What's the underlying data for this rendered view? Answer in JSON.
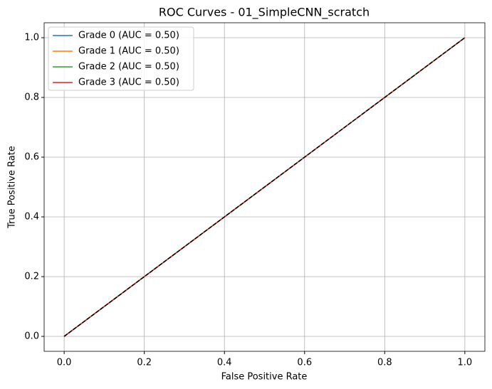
{
  "chart_data": {
    "type": "line",
    "title": "ROC Curves - 01_SimpleCNN_scratch",
    "x_label": "False Positive Rate",
    "y_label": "True Positive Rate",
    "x": [
      0,
      1
    ],
    "series": [
      {
        "name": "Grade 0 (AUC = 0.50)",
        "color": "#1f77b4",
        "values": [
          0,
          1
        ]
      },
      {
        "name": "Grade 1 (AUC = 0.50)",
        "color": "#ff7f0e",
        "values": [
          0,
          1
        ]
      },
      {
        "name": "Grade 2 (AUC = 0.50)",
        "color": "#2ca02c",
        "values": [
          0,
          1
        ]
      },
      {
        "name": "Grade 3 (AUC = 0.50)",
        "color": "#d62728",
        "values": [
          0,
          1
        ]
      },
      {
        "color": "#000000",
        "dashed": true,
        "values": [
          0,
          1
        ]
      }
    ],
    "xlim": [
      -0.05,
      1.05
    ],
    "ylim": [
      -0.05,
      1.05
    ],
    "xticks": [
      {
        "value": 0,
        "label": "0.0"
      },
      0.2,
      0.4,
      0.6,
      0.8,
      {
        "value": 1,
        "label": "1.0"
      }
    ],
    "yticks": [
      {
        "value": 0,
        "label": "0.0"
      },
      0.2,
      0.4,
      0.6,
      0.8,
      {
        "value": 1,
        "label": "1.0"
      }
    ],
    "grid": true,
    "legend": "upper-left"
  }
}
